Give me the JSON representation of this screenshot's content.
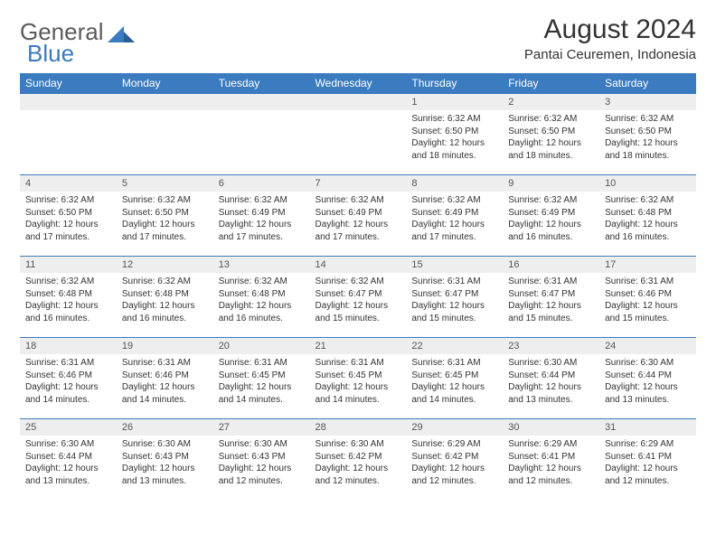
{
  "brand": {
    "word1": "General",
    "word2": "Blue",
    "gray": "#5a5a5a",
    "blue": "#3b7bbf"
  },
  "title": "August 2024",
  "location": "Pantai Ceuremen, Indonesia",
  "colors": {
    "header_bg": "#3b7bbf",
    "header_fg": "#ffffff",
    "daynum_bg": "#eeeeee",
    "border": "#3b7bbf",
    "text": "#333333"
  },
  "days_of_week": [
    "Sunday",
    "Monday",
    "Tuesday",
    "Wednesday",
    "Thursday",
    "Friday",
    "Saturday"
  ],
  "weeks": [
    [
      {
        "n": "",
        "lines": [
          "",
          "",
          "",
          ""
        ]
      },
      {
        "n": "",
        "lines": [
          "",
          "",
          "",
          ""
        ]
      },
      {
        "n": "",
        "lines": [
          "",
          "",
          "",
          ""
        ]
      },
      {
        "n": "",
        "lines": [
          "",
          "",
          "",
          ""
        ]
      },
      {
        "n": "1",
        "lines": [
          "Sunrise: 6:32 AM",
          "Sunset: 6:50 PM",
          "Daylight: 12 hours",
          "and 18 minutes."
        ]
      },
      {
        "n": "2",
        "lines": [
          "Sunrise: 6:32 AM",
          "Sunset: 6:50 PM",
          "Daylight: 12 hours",
          "and 18 minutes."
        ]
      },
      {
        "n": "3",
        "lines": [
          "Sunrise: 6:32 AM",
          "Sunset: 6:50 PM",
          "Daylight: 12 hours",
          "and 18 minutes."
        ]
      }
    ],
    [
      {
        "n": "4",
        "lines": [
          "Sunrise: 6:32 AM",
          "Sunset: 6:50 PM",
          "Daylight: 12 hours",
          "and 17 minutes."
        ]
      },
      {
        "n": "5",
        "lines": [
          "Sunrise: 6:32 AM",
          "Sunset: 6:50 PM",
          "Daylight: 12 hours",
          "and 17 minutes."
        ]
      },
      {
        "n": "6",
        "lines": [
          "Sunrise: 6:32 AM",
          "Sunset: 6:49 PM",
          "Daylight: 12 hours",
          "and 17 minutes."
        ]
      },
      {
        "n": "7",
        "lines": [
          "Sunrise: 6:32 AM",
          "Sunset: 6:49 PM",
          "Daylight: 12 hours",
          "and 17 minutes."
        ]
      },
      {
        "n": "8",
        "lines": [
          "Sunrise: 6:32 AM",
          "Sunset: 6:49 PM",
          "Daylight: 12 hours",
          "and 17 minutes."
        ]
      },
      {
        "n": "9",
        "lines": [
          "Sunrise: 6:32 AM",
          "Sunset: 6:49 PM",
          "Daylight: 12 hours",
          "and 16 minutes."
        ]
      },
      {
        "n": "10",
        "lines": [
          "Sunrise: 6:32 AM",
          "Sunset: 6:48 PM",
          "Daylight: 12 hours",
          "and 16 minutes."
        ]
      }
    ],
    [
      {
        "n": "11",
        "lines": [
          "Sunrise: 6:32 AM",
          "Sunset: 6:48 PM",
          "Daylight: 12 hours",
          "and 16 minutes."
        ]
      },
      {
        "n": "12",
        "lines": [
          "Sunrise: 6:32 AM",
          "Sunset: 6:48 PM",
          "Daylight: 12 hours",
          "and 16 minutes."
        ]
      },
      {
        "n": "13",
        "lines": [
          "Sunrise: 6:32 AM",
          "Sunset: 6:48 PM",
          "Daylight: 12 hours",
          "and 16 minutes."
        ]
      },
      {
        "n": "14",
        "lines": [
          "Sunrise: 6:32 AM",
          "Sunset: 6:47 PM",
          "Daylight: 12 hours",
          "and 15 minutes."
        ]
      },
      {
        "n": "15",
        "lines": [
          "Sunrise: 6:31 AM",
          "Sunset: 6:47 PM",
          "Daylight: 12 hours",
          "and 15 minutes."
        ]
      },
      {
        "n": "16",
        "lines": [
          "Sunrise: 6:31 AM",
          "Sunset: 6:47 PM",
          "Daylight: 12 hours",
          "and 15 minutes."
        ]
      },
      {
        "n": "17",
        "lines": [
          "Sunrise: 6:31 AM",
          "Sunset: 6:46 PM",
          "Daylight: 12 hours",
          "and 15 minutes."
        ]
      }
    ],
    [
      {
        "n": "18",
        "lines": [
          "Sunrise: 6:31 AM",
          "Sunset: 6:46 PM",
          "Daylight: 12 hours",
          "and 14 minutes."
        ]
      },
      {
        "n": "19",
        "lines": [
          "Sunrise: 6:31 AM",
          "Sunset: 6:46 PM",
          "Daylight: 12 hours",
          "and 14 minutes."
        ]
      },
      {
        "n": "20",
        "lines": [
          "Sunrise: 6:31 AM",
          "Sunset: 6:45 PM",
          "Daylight: 12 hours",
          "and 14 minutes."
        ]
      },
      {
        "n": "21",
        "lines": [
          "Sunrise: 6:31 AM",
          "Sunset: 6:45 PM",
          "Daylight: 12 hours",
          "and 14 minutes."
        ]
      },
      {
        "n": "22",
        "lines": [
          "Sunrise: 6:31 AM",
          "Sunset: 6:45 PM",
          "Daylight: 12 hours",
          "and 14 minutes."
        ]
      },
      {
        "n": "23",
        "lines": [
          "Sunrise: 6:30 AM",
          "Sunset: 6:44 PM",
          "Daylight: 12 hours",
          "and 13 minutes."
        ]
      },
      {
        "n": "24",
        "lines": [
          "Sunrise: 6:30 AM",
          "Sunset: 6:44 PM",
          "Daylight: 12 hours",
          "and 13 minutes."
        ]
      }
    ],
    [
      {
        "n": "25",
        "lines": [
          "Sunrise: 6:30 AM",
          "Sunset: 6:44 PM",
          "Daylight: 12 hours",
          "and 13 minutes."
        ]
      },
      {
        "n": "26",
        "lines": [
          "Sunrise: 6:30 AM",
          "Sunset: 6:43 PM",
          "Daylight: 12 hours",
          "and 13 minutes."
        ]
      },
      {
        "n": "27",
        "lines": [
          "Sunrise: 6:30 AM",
          "Sunset: 6:43 PM",
          "Daylight: 12 hours",
          "and 12 minutes."
        ]
      },
      {
        "n": "28",
        "lines": [
          "Sunrise: 6:30 AM",
          "Sunset: 6:42 PM",
          "Daylight: 12 hours",
          "and 12 minutes."
        ]
      },
      {
        "n": "29",
        "lines": [
          "Sunrise: 6:29 AM",
          "Sunset: 6:42 PM",
          "Daylight: 12 hours",
          "and 12 minutes."
        ]
      },
      {
        "n": "30",
        "lines": [
          "Sunrise: 6:29 AM",
          "Sunset: 6:41 PM",
          "Daylight: 12 hours",
          "and 12 minutes."
        ]
      },
      {
        "n": "31",
        "lines": [
          "Sunrise: 6:29 AM",
          "Sunset: 6:41 PM",
          "Daylight: 12 hours",
          "and 12 minutes."
        ]
      }
    ]
  ]
}
